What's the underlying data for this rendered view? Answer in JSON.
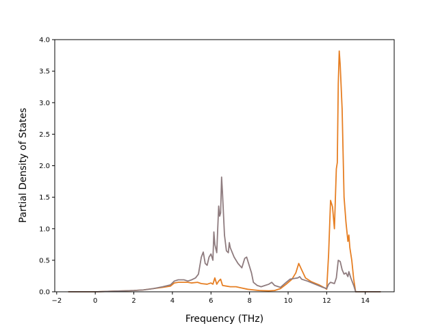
{
  "chart_data": {
    "type": "line",
    "title": "",
    "xlabel": "Frequency (THz)",
    "ylabel": "Partial Density of States",
    "xlim": [
      -2.1,
      15.5
    ],
    "ylim": [
      0.0,
      4.0
    ],
    "xticks": [
      -2,
      0,
      2,
      4,
      6,
      8,
      10,
      12,
      14
    ],
    "xtick_labels": [
      "−2",
      "0",
      "2",
      "4",
      "6",
      "8",
      "10",
      "12",
      "14"
    ],
    "yticks": [
      0.0,
      0.5,
      1.0,
      1.5,
      2.0,
      2.5,
      3.0,
      3.5,
      4.0
    ],
    "ytick_labels": [
      "0.0",
      "0.5",
      "1.0",
      "1.5",
      "2.0",
      "2.5",
      "3.0",
      "3.5",
      "4.0"
    ],
    "grid": false,
    "series": [
      {
        "color": "#e67e22",
        "points": [
          [
            -1.4,
            0
          ],
          [
            0,
            0
          ],
          [
            0.5,
            0.005
          ],
          [
            1,
            0.01
          ],
          [
            1.5,
            0.015
          ],
          [
            2,
            0.02
          ],
          [
            2.5,
            0.03
          ],
          [
            3,
            0.05
          ],
          [
            3.5,
            0.07
          ],
          [
            3.9,
            0.09
          ],
          [
            4.1,
            0.14
          ],
          [
            4.3,
            0.15
          ],
          [
            4.6,
            0.15
          ],
          [
            4.8,
            0.15
          ],
          [
            5,
            0.14
          ],
          [
            5.3,
            0.15
          ],
          [
            5.5,
            0.13
          ],
          [
            5.8,
            0.12
          ],
          [
            6.0,
            0.14
          ],
          [
            6.1,
            0.12
          ],
          [
            6.2,
            0.22
          ],
          [
            6.3,
            0.12
          ],
          [
            6.4,
            0.17
          ],
          [
            6.5,
            0.2
          ],
          [
            6.6,
            0.1
          ],
          [
            6.8,
            0.09
          ],
          [
            7.0,
            0.08
          ],
          [
            7.3,
            0.08
          ],
          [
            7.6,
            0.06
          ],
          [
            7.9,
            0.04
          ],
          [
            8.2,
            0.03
          ],
          [
            8.5,
            0.02
          ],
          [
            9.0,
            0.015
          ],
          [
            9.3,
            0.02
          ],
          [
            9.6,
            0.05
          ],
          [
            9.9,
            0.12
          ],
          [
            10.2,
            0.2
          ],
          [
            10.4,
            0.3
          ],
          [
            10.55,
            0.45
          ],
          [
            10.7,
            0.35
          ],
          [
            10.9,
            0.22
          ],
          [
            11.2,
            0.16
          ],
          [
            11.6,
            0.11
          ],
          [
            11.9,
            0.06
          ],
          [
            12.0,
            0.04
          ],
          [
            12.1,
            0.6
          ],
          [
            12.2,
            1.45
          ],
          [
            12.3,
            1.35
          ],
          [
            12.4,
            1.0
          ],
          [
            12.5,
            1.95
          ],
          [
            12.55,
            2.05
          ],
          [
            12.6,
            3.3
          ],
          [
            12.65,
            3.82
          ],
          [
            12.7,
            3.6
          ],
          [
            12.8,
            2.9
          ],
          [
            12.9,
            1.5
          ],
          [
            13.0,
            1.1
          ],
          [
            13.1,
            0.8
          ],
          [
            13.15,
            0.9
          ],
          [
            13.2,
            0.7
          ],
          [
            13.3,
            0.5
          ],
          [
            13.4,
            0.2
          ],
          [
            13.5,
            0.0
          ],
          [
            14.8,
            0.0
          ]
        ]
      },
      {
        "color": "#8e7b7e",
        "points": [
          [
            -1.4,
            0
          ],
          [
            0,
            0
          ],
          [
            0.5,
            0.005
          ],
          [
            1,
            0.01
          ],
          [
            1.5,
            0.015
          ],
          [
            2,
            0.02
          ],
          [
            2.5,
            0.03
          ],
          [
            3,
            0.05
          ],
          [
            3.5,
            0.08
          ],
          [
            3.9,
            0.11
          ],
          [
            4.1,
            0.17
          ],
          [
            4.3,
            0.19
          ],
          [
            4.6,
            0.19
          ],
          [
            4.8,
            0.17
          ],
          [
            5,
            0.19
          ],
          [
            5.2,
            0.22
          ],
          [
            5.35,
            0.28
          ],
          [
            5.5,
            0.55
          ],
          [
            5.6,
            0.63
          ],
          [
            5.7,
            0.45
          ],
          [
            5.8,
            0.42
          ],
          [
            5.9,
            0.55
          ],
          [
            6.0,
            0.6
          ],
          [
            6.1,
            0.5
          ],
          [
            6.15,
            0.95
          ],
          [
            6.2,
            0.75
          ],
          [
            6.3,
            0.62
          ],
          [
            6.35,
            1.0
          ],
          [
            6.4,
            1.36
          ],
          [
            6.45,
            1.2
          ],
          [
            6.5,
            1.25
          ],
          [
            6.55,
            1.82
          ],
          [
            6.6,
            1.55
          ],
          [
            6.7,
            0.9
          ],
          [
            6.8,
            0.65
          ],
          [
            6.9,
            0.62
          ],
          [
            6.95,
            0.78
          ],
          [
            7.0,
            0.7
          ],
          [
            7.2,
            0.55
          ],
          [
            7.4,
            0.45
          ],
          [
            7.6,
            0.38
          ],
          [
            7.75,
            0.53
          ],
          [
            7.85,
            0.55
          ],
          [
            7.95,
            0.45
          ],
          [
            8.1,
            0.3
          ],
          [
            8.2,
            0.15
          ],
          [
            8.4,
            0.1
          ],
          [
            8.6,
            0.08
          ],
          [
            8.8,
            0.1
          ],
          [
            9.0,
            0.12
          ],
          [
            9.15,
            0.15
          ],
          [
            9.3,
            0.1
          ],
          [
            9.6,
            0.07
          ],
          [
            9.9,
            0.15
          ],
          [
            10.1,
            0.2
          ],
          [
            10.3,
            0.21
          ],
          [
            10.5,
            0.22
          ],
          [
            10.6,
            0.24
          ],
          [
            10.7,
            0.2
          ],
          [
            11.0,
            0.17
          ],
          [
            11.4,
            0.12
          ],
          [
            11.8,
            0.07
          ],
          [
            12.0,
            0.05
          ],
          [
            12.1,
            0.12
          ],
          [
            12.2,
            0.15
          ],
          [
            12.4,
            0.13
          ],
          [
            12.5,
            0.22
          ],
          [
            12.6,
            0.5
          ],
          [
            12.7,
            0.48
          ],
          [
            12.8,
            0.35
          ],
          [
            12.9,
            0.28
          ],
          [
            13.0,
            0.3
          ],
          [
            13.1,
            0.24
          ],
          [
            13.15,
            0.32
          ],
          [
            13.25,
            0.22
          ],
          [
            13.4,
            0.1
          ],
          [
            13.5,
            0.0
          ],
          [
            14.8,
            0.0
          ]
        ]
      }
    ]
  }
}
